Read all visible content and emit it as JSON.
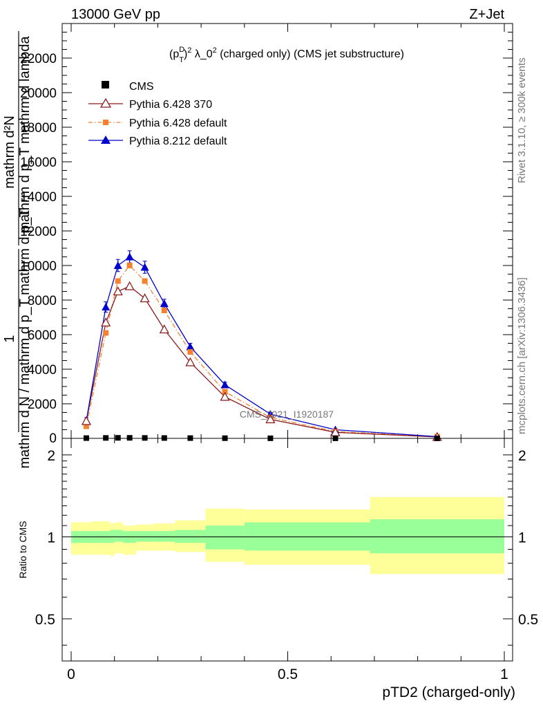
{
  "header": {
    "left": "13000 GeV pp",
    "right": "Z+Jet"
  },
  "plot_title": "(p_T^D)^2 λ_0^2 (charged only) (CMS jet substructure)",
  "plot_title_parts": {
    "p": "(p",
    "T": "T",
    "D": "D",
    "pow2": "2",
    "lambda": "λ_0",
    "lpow": "2",
    "rest": "(charged only) (CMS jet substructure)"
  },
  "ylabel_main": {
    "fraction_num": "1",
    "fraction_den": "mathrm d N / mathrm d p_T mathrm d p_T",
    "line1": "mathrm d²N",
    "line2": "mathrm d p_T mathrm d lambda"
  },
  "ylabel_ratio": "Ratio to CMS",
  "xlabel": "pTD2 (charged-only)",
  "side_text": {
    "rivet": "Rivet 3.1.10, ≥ 300k events",
    "mcplots": "mcplots.cern.ch [arXiv:1306.3436]"
  },
  "watermark": "CMS_2021_I1920187",
  "legend": [
    {
      "label": "CMS",
      "color": "#000000",
      "marker": "square"
    },
    {
      "label": "Pythia 6.428 370",
      "color": "#8b1a1a",
      "marker": "open-triangle"
    },
    {
      "label": "Pythia 6.428 default",
      "color": "#f58030",
      "marker": "filled-square-dashdot"
    },
    {
      "label": "Pythia 8.212 default",
      "color": "#0000cc",
      "marker": "filled-triangle"
    }
  ],
  "chart_data": [
    {
      "type": "line",
      "panel": "main",
      "x": [
        0.035,
        0.08,
        0.108,
        0.135,
        0.17,
        0.215,
        0.275,
        0.355,
        0.46,
        0.61,
        0.845
      ],
      "xlim": [
        -0.02,
        1.02
      ],
      "ylim": [
        0,
        24000
      ],
      "yticks": [
        2000,
        4000,
        6000,
        8000,
        10000,
        12000,
        14000,
        16000,
        18000,
        20000,
        22000
      ],
      "ytick_labels": [
        "2000",
        "4000",
        "6000",
        "8000",
        "10000",
        "12000",
        "14000",
        "16000",
        "18000",
        "20000",
        "22000"
      ],
      "zero_label": "0",
      "series": [
        {
          "name": "CMS",
          "values": [
            15,
            25,
            30,
            30,
            25,
            20,
            15,
            10,
            5,
            3,
            1
          ]
        },
        {
          "name": "Pythia 6.428 370",
          "values": [
            1000,
            6700,
            8500,
            8800,
            8100,
            6300,
            4400,
            2400,
            1100,
            350,
            80
          ]
        },
        {
          "name": "Pythia 6.428 default",
          "values": [
            700,
            6100,
            9100,
            10000,
            9100,
            7400,
            5000,
            2700,
            1200,
            400,
            100
          ]
        },
        {
          "name": "Pythia 8.212 default",
          "values": [
            1000,
            7600,
            10000,
            10500,
            9900,
            7800,
            5300,
            3100,
            1400,
            500,
            100
          ]
        }
      ],
      "error_half": [
        200,
        300,
        350,
        350,
        350,
        250,
        200,
        150,
        100,
        60,
        30
      ]
    },
    {
      "type": "area",
      "panel": "ratio",
      "ylabel": "Ratio to CMS",
      "ylim": [
        0.35,
        2.3
      ],
      "yticks": [
        0.5,
        1,
        2
      ],
      "ytick_labels": [
        "0.5",
        "1",
        "2"
      ],
      "xticks": [
        0,
        0.5,
        1
      ],
      "xtick_labels": [
        "0",
        "0.5",
        "1"
      ],
      "reference_line": 1,
      "bin_edges": [
        0,
        0.045,
        0.09,
        0.1,
        0.12,
        0.15,
        0.19,
        0.24,
        0.31,
        0.4,
        0.69,
        1.0
      ],
      "stat_band": {
        "name": "stat",
        "color": "#99ff99",
        "lo": [
          0.95,
          0.95,
          0.95,
          0.96,
          0.95,
          0.96,
          0.96,
          0.95,
          0.9,
          0.89,
          0.87
        ],
        "hi": [
          1.05,
          1.05,
          1.06,
          1.06,
          1.05,
          1.05,
          1.05,
          1.06,
          1.1,
          1.13,
          1.16
        ]
      },
      "total_band": {
        "name": "stat+syst",
        "color": "#ffff99",
        "lo": [
          0.86,
          0.86,
          0.85,
          0.87,
          0.86,
          0.89,
          0.89,
          0.88,
          0.81,
          0.79,
          0.73
        ],
        "hi": [
          1.13,
          1.14,
          1.12,
          1.13,
          1.1,
          1.11,
          1.12,
          1.15,
          1.27,
          1.26,
          1.4
        ]
      }
    }
  ]
}
